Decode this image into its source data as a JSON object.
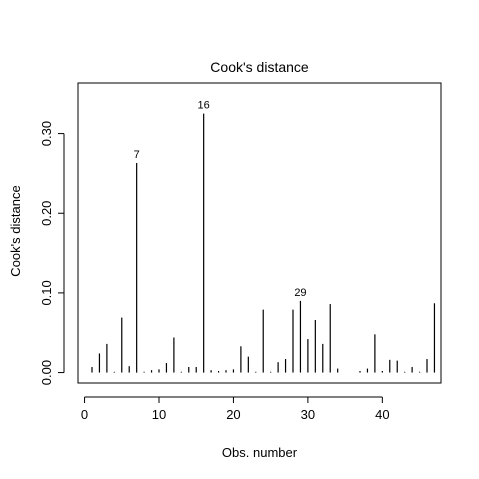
{
  "chart_data": {
    "type": "bar",
    "title": "Cook's distance",
    "xlabel": "Obs. number",
    "ylabel": "Cook's distance",
    "xlim": [
      -0.88,
      47.88
    ],
    "ylim": [
      -0.0131,
      0.3635
    ],
    "xticks": [
      0,
      10,
      20,
      30,
      40
    ],
    "xtick_labels": [
      "0",
      "10",
      "20",
      "30",
      "40"
    ],
    "yticks": [
      0.0,
      0.1,
      0.2,
      0.3
    ],
    "ytick_labels": [
      "0.00",
      "0.10",
      "0.20",
      "0.30"
    ],
    "x": [
      1,
      2,
      3,
      4,
      5,
      6,
      7,
      8,
      9,
      10,
      11,
      12,
      13,
      14,
      15,
      16,
      17,
      18,
      19,
      20,
      21,
      22,
      23,
      24,
      25,
      26,
      27,
      28,
      29,
      30,
      31,
      32,
      33,
      34,
      35,
      36,
      37,
      38,
      39,
      40,
      41,
      42,
      43,
      44,
      45,
      46,
      47
    ],
    "values": [
      0.007,
      0.024,
      0.036,
      0.001,
      0.069,
      0.008,
      0.263,
      0.001,
      0.003,
      0.004,
      0.012,
      0.044,
      0.001,
      0.007,
      0.007,
      0.325,
      0.003,
      0.002,
      0.003,
      0.004,
      0.033,
      0.02,
      0.001,
      0.079,
      0.001,
      0.013,
      0.017,
      0.079,
      0.09,
      0.042,
      0.066,
      0.036,
      0.086,
      0.005,
      0.0,
      0.0,
      0.002,
      0.005,
      0.048,
      0.002,
      0.016,
      0.015,
      0.001,
      0.007,
      0.001,
      0.017,
      0.087
    ],
    "annotations": [
      {
        "x": 7,
        "label": "7"
      },
      {
        "x": 16,
        "label": "16"
      },
      {
        "x": 29,
        "label": "29"
      }
    ],
    "grid": false,
    "legend": "none"
  }
}
